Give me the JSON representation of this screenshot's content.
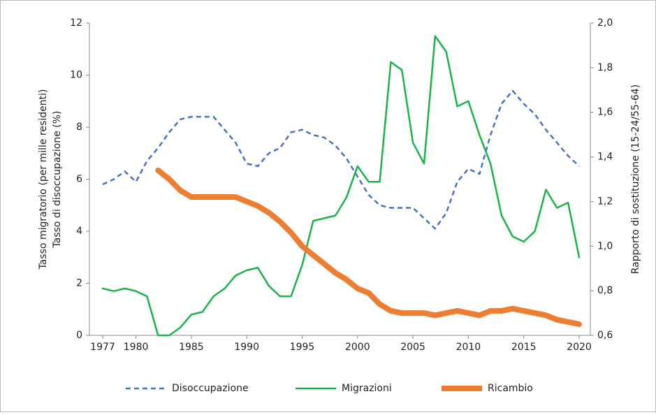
{
  "chart_data": {
    "type": "line",
    "ylabel": [
      "Tasso migratorio (per mille residenti)",
      "Tasso di disoccupazione (%)"
    ],
    "y2label": "Rapporto di sostituzione (15-24/55-64)",
    "x": [
      1977,
      1978,
      1979,
      1980,
      1981,
      1982,
      1983,
      1984,
      1985,
      1986,
      1987,
      1988,
      1989,
      1990,
      1991,
      1992,
      1993,
      1994,
      1995,
      1996,
      1997,
      1998,
      1999,
      2000,
      2001,
      2002,
      2003,
      2004,
      2005,
      2006,
      2007,
      2008,
      2009,
      2010,
      2011,
      2012,
      2013,
      2014,
      2015,
      2016,
      2017,
      2018,
      2019,
      2020
    ],
    "xlim": [
      1977,
      2020
    ],
    "xticks": [
      1977,
      1980,
      1985,
      1990,
      1995,
      2000,
      2005,
      2010,
      2015,
      2020
    ],
    "ylim": [
      0,
      12
    ],
    "yticks": [
      0,
      2,
      4,
      6,
      8,
      10,
      12
    ],
    "y2lim": [
      0.6,
      2.0
    ],
    "y2ticks": [
      {
        "value": 0.6,
        "label": "0,6"
      },
      {
        "value": 0.8,
        "label": "0,8"
      },
      {
        "value": 1.0,
        "label": "1,0"
      },
      {
        "value": 1.2,
        "label": "1,2"
      },
      {
        "value": 1.4,
        "label": "1,4"
      },
      {
        "value": 1.6,
        "label": "1,6"
      },
      {
        "value": 1.8,
        "label": "1,8"
      },
      {
        "value": 2.0,
        "label": "2,0"
      }
    ],
    "series": [
      {
        "name": "Disoccupazione",
        "color": "#4472c4",
        "dash": true,
        "width": 2.5,
        "values": [
          5.8,
          6.0,
          6.3,
          5.9,
          6.7,
          7.2,
          7.8,
          8.3,
          8.4,
          8.4,
          8.4,
          7.9,
          7.4,
          6.6,
          6.5,
          7.0,
          7.2,
          7.8,
          7.9,
          7.7,
          7.6,
          7.3,
          6.8,
          6.1,
          5.4,
          5.0,
          4.9,
          4.9,
          4.9,
          4.5,
          4.1,
          4.7,
          5.9,
          6.4,
          6.2,
          7.7,
          8.9,
          9.4,
          8.9,
          8.5,
          7.9,
          7.4,
          6.9,
          6.5
        ]
      },
      {
        "name": "Migrazioni",
        "color": "#1fb24a",
        "dash": false,
        "width": 2.5,
        "values": [
          1.8,
          1.7,
          1.8,
          1.7,
          1.5,
          0.0,
          0.0,
          0.3,
          0.8,
          0.9,
          1.5,
          1.8,
          2.3,
          2.5,
          2.6,
          1.9,
          1.5,
          1.5,
          2.7,
          4.4,
          4.5,
          4.6,
          5.3,
          6.5,
          5.9,
          5.9,
          10.5,
          10.2,
          7.4,
          6.6,
          11.5,
          10.9,
          8.8,
          9.0,
          7.7,
          6.6,
          4.6,
          3.8,
          3.6,
          4.0,
          5.6,
          4.9,
          5.1,
          3.0
        ]
      },
      {
        "name": "Ricambio",
        "color": "#ed7d31",
        "dash": false,
        "width": 8,
        "axis": "y2",
        "values": [
          null,
          null,
          null,
          null,
          null,
          1.34,
          1.3,
          1.25,
          1.22,
          1.22,
          1.22,
          1.22,
          1.22,
          1.2,
          1.18,
          1.15,
          1.11,
          1.06,
          1.0,
          0.96,
          0.92,
          0.88,
          0.85,
          0.81,
          0.79,
          0.74,
          0.71,
          0.7,
          0.7,
          0.7,
          0.69,
          0.7,
          0.71,
          0.7,
          0.69,
          0.71,
          0.71,
          0.72,
          0.71,
          0.7,
          0.69,
          0.67,
          0.66,
          0.65
        ]
      }
    ]
  }
}
